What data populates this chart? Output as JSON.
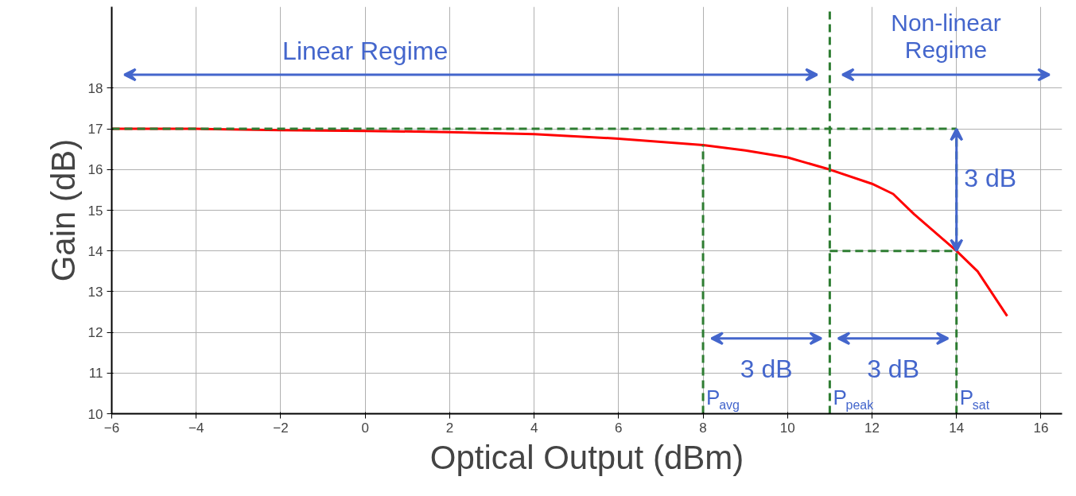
{
  "chart_data": {
    "type": "line",
    "xlabel": "Optical Output (dBm)",
    "ylabel": "Gain (dB)",
    "x": [
      -6,
      -4,
      -2,
      0,
      2,
      4,
      6,
      8,
      9,
      10,
      11,
      12,
      12.5,
      13,
      14,
      14.5,
      15.2
    ],
    "series": [
      {
        "color": "#ff0000",
        "values": [
          17.0,
          17.0,
          16.97,
          16.95,
          16.92,
          16.87,
          16.76,
          16.6,
          16.47,
          16.3,
          16.0,
          15.65,
          15.4,
          14.9,
          14.0,
          13.5,
          12.4
        ]
      }
    ],
    "xlim": [
      -6,
      16.5
    ],
    "ylim": [
      10,
      20
    ],
    "xticks": [
      -6,
      -4,
      -2,
      0,
      2,
      4,
      6,
      8,
      10,
      12,
      14,
      16
    ],
    "yticks": [
      10,
      11,
      12,
      13,
      14,
      15,
      16,
      17,
      18
    ],
    "grid": true,
    "marker": "none",
    "line_style": "solid",
    "ref_lines": [
      {
        "axis": "x",
        "value": 8,
        "label": "P$_{avg}$",
        "color": "#2e7d32",
        "line_style": "dashed"
      },
      {
        "axis": "x",
        "value": 11,
        "label": "P$_{peak}$",
        "color": "#2e7d32",
        "line_style": "dashed"
      },
      {
        "axis": "x",
        "value": 14,
        "label": "P$_{sat}$",
        "color": "#2e7d32",
        "line_style": "dashed"
      },
      {
        "axis": "y",
        "value": 17,
        "color": "#2e7d32",
        "line_style": "dashed"
      },
      {
        "axis": "y",
        "value": 14,
        "color": "#2e7d32",
        "line_style": "dashed"
      }
    ],
    "annotations": [
      "Linear Regime",
      "Non-linear\nRegime",
      "3 dB",
      "3 dB",
      "3 dB"
    ]
  }
}
